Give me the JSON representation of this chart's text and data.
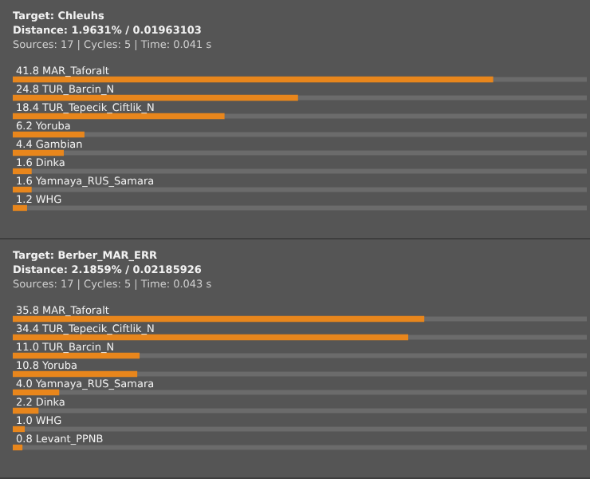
{
  "chart_data": [
    {
      "type": "bar",
      "orientation": "horizontal",
      "title": "Target: Chleuhs",
      "subtitle": "Distance: 1.9631% / 0.01963103",
      "annotations": [
        "Sources: 17 | Cycles: 5 | Time: 0.041 s"
      ],
      "categories": [
        "MAR_Taforalt",
        "TUR_Barcin_N",
        "TUR_Tepecik_Ciftlik_N",
        "Yoruba",
        "Gambian",
        "Dinka",
        "Yamnaya_RUS_Samara",
        "WHG"
      ],
      "values": [
        41.8,
        24.8,
        18.4,
        6.2,
        4.4,
        1.6,
        1.6,
        1.2
      ],
      "value_labels": [
        "41.8",
        "24.8",
        "18.4",
        "6.2",
        "4.4",
        "1.6",
        "1.6",
        "1.2"
      ],
      "color": "#e8861c",
      "legend": false,
      "tick_labels": false
    },
    {
      "type": "bar",
      "orientation": "horizontal",
      "title": "Target: Berber_MAR_ERR",
      "subtitle": "Distance: 2.1859% / 0.02185926",
      "annotations": [
        "Sources: 17 | Cycles: 5 | Time: 0.043 s"
      ],
      "categories": [
        "MAR_Taforalt",
        "TUR_Tepecik_Ciftlik_N",
        "TUR_Barcin_N",
        "Yoruba",
        "Yamnaya_RUS_Samara",
        "Dinka",
        "WHG",
        "Levant_PPNB"
      ],
      "values": [
        35.8,
        34.4,
        11.0,
        10.8,
        4.0,
        2.2,
        1.0,
        0.8
      ],
      "value_labels": [
        "35.8",
        "34.4",
        "11.0",
        "10.8",
        "4.0",
        "2.2",
        "1.0",
        "0.8"
      ],
      "color": "#e8861c",
      "legend": false,
      "tick_labels": false
    }
  ]
}
